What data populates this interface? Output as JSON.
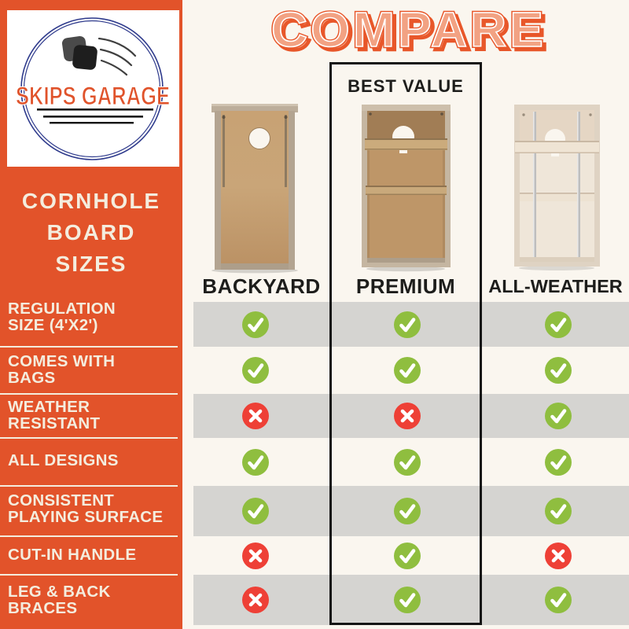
{
  "title": "COMPARE",
  "brand": {
    "name": "SKIPS GARAGE",
    "icon": "cornhole-bags-toss-icon"
  },
  "sidebar": {
    "heading_lines": [
      "CORNHOLE",
      "BOARD",
      "SIZES"
    ],
    "features": [
      {
        "lines": [
          "REGULATION",
          "SIZE (4'X2')"
        ]
      },
      {
        "lines": [
          "COMES WITH",
          "BAGS"
        ]
      },
      {
        "lines": [
          "WEATHER",
          "RESISTANT"
        ]
      },
      {
        "lines": [
          "ALL DESIGNS"
        ]
      },
      {
        "lines": [
          "CONSISTENT",
          "PLAYING SURFACE"
        ]
      },
      {
        "lines": [
          "CUT-IN HANDLE"
        ]
      },
      {
        "lines": [
          "LEG & BACK",
          "BRACES"
        ]
      }
    ]
  },
  "columns": [
    {
      "label": "BACKYARD"
    },
    {
      "label": "PREMIUM",
      "badge": "BEST VALUE"
    },
    {
      "label": "ALL-WEATHER"
    }
  ],
  "chart_data": {
    "type": "table",
    "title": "COMPARE",
    "columns": [
      "BACKYARD",
      "PREMIUM",
      "ALL-WEATHER"
    ],
    "rows": [
      {
        "feature": "REGULATION SIZE (4'X2')",
        "values": [
          "yes",
          "yes",
          "yes"
        ]
      },
      {
        "feature": "COMES WITH BAGS",
        "values": [
          "yes",
          "yes",
          "yes"
        ]
      },
      {
        "feature": "WEATHER RESISTANT",
        "values": [
          "no",
          "no",
          "yes"
        ]
      },
      {
        "feature": "ALL DESIGNS",
        "values": [
          "yes",
          "yes",
          "yes"
        ]
      },
      {
        "feature": "CONSISTENT PLAYING SURFACE",
        "values": [
          "yes",
          "yes",
          "yes"
        ]
      },
      {
        "feature": "CUT-IN HANDLE",
        "values": [
          "no",
          "yes",
          "no"
        ]
      },
      {
        "feature": "LEG & BACK BRACES",
        "values": [
          "no",
          "yes",
          "yes"
        ]
      }
    ],
    "legend": {
      "yes": "check-icon",
      "no": "cross-icon"
    }
  },
  "colors": {
    "sidebar_orange": "#E2532A",
    "cream_text": "#F4EDDE",
    "row_band_gray": "#D5D4D1",
    "check_green": "#8FBE3F",
    "cross_red": "#EE4036",
    "title_fill": "#F2A283",
    "title_outline": "#E8572A",
    "badge_border": "#151515",
    "logo_blue": "#2E3A8C",
    "background": "#FAF6EF"
  }
}
